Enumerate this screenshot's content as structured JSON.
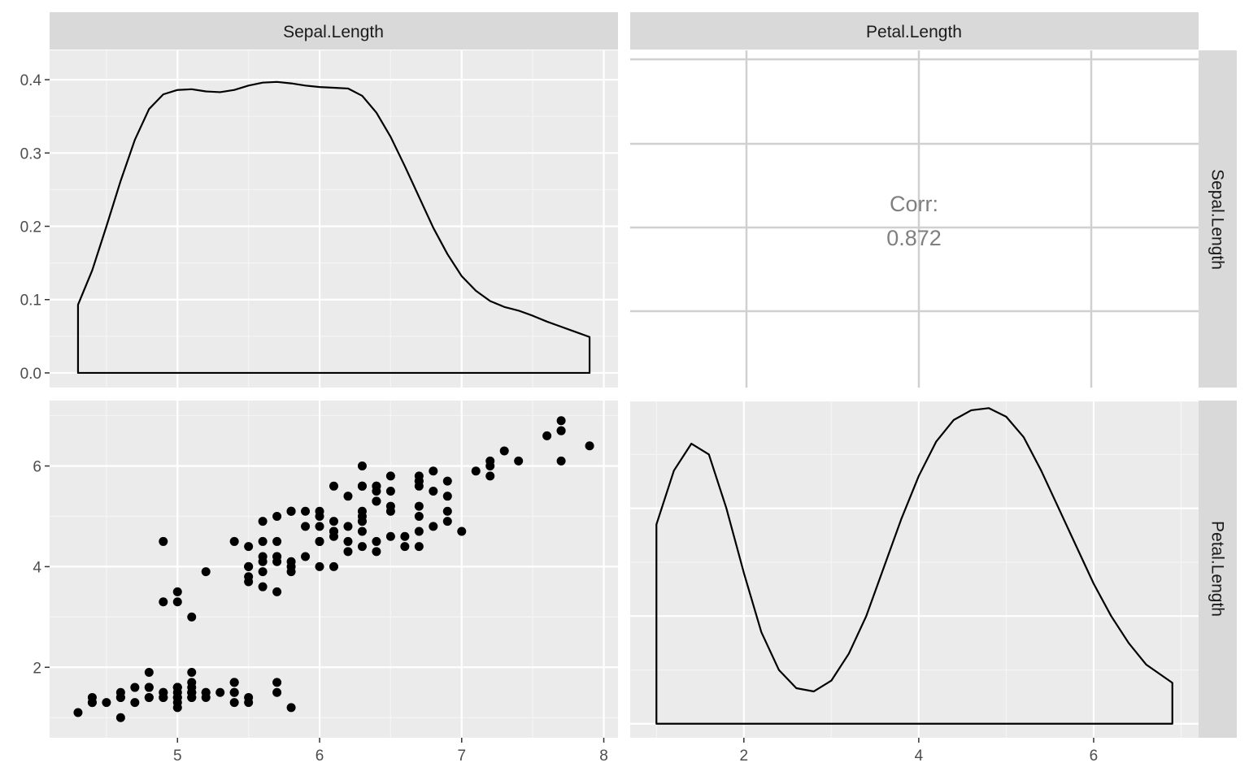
{
  "chart_data": {
    "type": "scatter",
    "title": "",
    "variables": [
      "Sepal.Length",
      "Petal.Length"
    ],
    "column_strips": [
      "Sepal.Length",
      "Petal.Length"
    ],
    "row_strips": [
      "Sepal.Length",
      "Petal.Length"
    ],
    "theme": "ggplot2 grey, grid on, no legend",
    "panels": {
      "sepal_density": {
        "type": "area",
        "x_ticks": [
          "5",
          "6",
          "7",
          "8"
        ],
        "y_ticks": [
          "0.0",
          "0.1",
          "0.2",
          "0.3",
          "0.4"
        ],
        "xlim": [
          4.1,
          8.1
        ],
        "ylim": [
          -0.02,
          0.44
        ],
        "x": [
          4.3,
          4.4,
          4.5,
          4.6,
          4.7,
          4.8,
          4.9,
          5.0,
          5.1,
          5.2,
          5.3,
          5.4,
          5.5,
          5.6,
          5.7,
          5.8,
          5.9,
          6.0,
          6.1,
          6.2,
          6.3,
          6.4,
          6.5,
          6.6,
          6.7,
          6.8,
          6.9,
          7.0,
          7.1,
          7.2,
          7.3,
          7.4,
          7.5,
          7.6,
          7.7,
          7.8,
          7.9
        ],
        "y": [
          0.093,
          0.14,
          0.2,
          0.262,
          0.318,
          0.36,
          0.38,
          0.386,
          0.387,
          0.384,
          0.383,
          0.386,
          0.392,
          0.396,
          0.397,
          0.395,
          0.392,
          0.39,
          0.389,
          0.388,
          0.378,
          0.355,
          0.322,
          0.282,
          0.24,
          0.198,
          0.162,
          0.132,
          0.112,
          0.098,
          0.09,
          0.085,
          0.078,
          0.07,
          0.063,
          0.056,
          0.049
        ]
      },
      "correlation": {
        "label": "Corr:",
        "value": "0.872"
      },
      "scatter": {
        "x_ticks": [
          "5",
          "6",
          "7",
          "8"
        ],
        "y_ticks": [
          "2",
          "4",
          "6"
        ],
        "xlim": [
          4.1,
          8.1
        ],
        "ylim": [
          0.6,
          7.3
        ],
        "points": [
          [
            5.1,
            1.4
          ],
          [
            4.9,
            1.4
          ],
          [
            4.7,
            1.3
          ],
          [
            4.6,
            1.5
          ],
          [
            5.0,
            1.4
          ],
          [
            5.4,
            1.7
          ],
          [
            4.6,
            1.4
          ],
          [
            5.0,
            1.5
          ],
          [
            4.4,
            1.4
          ],
          [
            4.9,
            1.5
          ],
          [
            5.4,
            1.5
          ],
          [
            4.8,
            1.6
          ],
          [
            4.8,
            1.4
          ],
          [
            4.3,
            1.1
          ],
          [
            5.8,
            1.2
          ],
          [
            5.7,
            1.5
          ],
          [
            5.4,
            1.3
          ],
          [
            5.1,
            1.4
          ],
          [
            5.7,
            1.7
          ],
          [
            5.1,
            1.5
          ],
          [
            5.4,
            1.7
          ],
          [
            5.1,
            1.5
          ],
          [
            4.6,
            1.0
          ],
          [
            5.1,
            1.7
          ],
          [
            4.8,
            1.9
          ],
          [
            5.0,
            1.6
          ],
          [
            5.0,
            1.6
          ],
          [
            5.2,
            1.5
          ],
          [
            5.2,
            1.4
          ],
          [
            4.7,
            1.6
          ],
          [
            4.8,
            1.6
          ],
          [
            5.4,
            1.5
          ],
          [
            5.2,
            1.5
          ],
          [
            5.5,
            1.4
          ],
          [
            4.9,
            1.5
          ],
          [
            5.0,
            1.2
          ],
          [
            5.5,
            1.3
          ],
          [
            4.9,
            1.4
          ],
          [
            4.4,
            1.3
          ],
          [
            5.1,
            1.5
          ],
          [
            5.0,
            1.3
          ],
          [
            4.5,
            1.3
          ],
          [
            4.4,
            1.3
          ],
          [
            5.0,
            1.6
          ],
          [
            5.1,
            1.9
          ],
          [
            4.8,
            1.4
          ],
          [
            5.1,
            1.6
          ],
          [
            4.6,
            1.4
          ],
          [
            5.3,
            1.5
          ],
          [
            5.0,
            1.4
          ],
          [
            7.0,
            4.7
          ],
          [
            6.4,
            4.5
          ],
          [
            6.9,
            4.9
          ],
          [
            5.5,
            4.0
          ],
          [
            6.5,
            4.6
          ],
          [
            5.7,
            4.5
          ],
          [
            6.3,
            4.7
          ],
          [
            4.9,
            3.3
          ],
          [
            6.6,
            4.6
          ],
          [
            5.2,
            3.9
          ],
          [
            5.0,
            3.5
          ],
          [
            5.9,
            4.2
          ],
          [
            6.0,
            4.0
          ],
          [
            6.1,
            4.7
          ],
          [
            5.6,
            3.6
          ],
          [
            6.7,
            4.4
          ],
          [
            5.6,
            4.5
          ],
          [
            5.8,
            4.1
          ],
          [
            6.2,
            4.5
          ],
          [
            5.6,
            3.9
          ],
          [
            5.9,
            4.8
          ],
          [
            6.1,
            4.0
          ],
          [
            6.3,
            4.9
          ],
          [
            6.1,
            4.7
          ],
          [
            6.4,
            4.3
          ],
          [
            6.6,
            4.4
          ],
          [
            6.8,
            4.8
          ],
          [
            6.7,
            5.0
          ],
          [
            6.0,
            4.5
          ],
          [
            5.7,
            3.5
          ],
          [
            5.5,
            3.8
          ],
          [
            5.5,
            3.7
          ],
          [
            5.8,
            3.9
          ],
          [
            6.0,
            5.1
          ],
          [
            5.4,
            4.5
          ],
          [
            6.0,
            4.5
          ],
          [
            6.7,
            4.7
          ],
          [
            6.3,
            4.4
          ],
          [
            5.6,
            4.1
          ],
          [
            5.5,
            4.0
          ],
          [
            5.5,
            4.4
          ],
          [
            6.1,
            4.6
          ],
          [
            5.8,
            4.0
          ],
          [
            5.0,
            3.3
          ],
          [
            5.6,
            4.2
          ],
          [
            5.7,
            4.2
          ],
          [
            5.7,
            4.2
          ],
          [
            6.2,
            4.3
          ],
          [
            5.1,
            3.0
          ],
          [
            5.7,
            4.1
          ],
          [
            6.3,
            6.0
          ],
          [
            5.8,
            5.1
          ],
          [
            7.1,
            5.9
          ],
          [
            6.3,
            5.6
          ],
          [
            6.5,
            5.8
          ],
          [
            7.6,
            6.6
          ],
          [
            4.9,
            4.5
          ],
          [
            7.3,
            6.3
          ],
          [
            6.7,
            5.8
          ],
          [
            7.2,
            6.1
          ],
          [
            6.5,
            5.1
          ],
          [
            6.4,
            5.3
          ],
          [
            6.8,
            5.5
          ],
          [
            5.7,
            5.0
          ],
          [
            5.8,
            5.1
          ],
          [
            6.4,
            5.3
          ],
          [
            6.5,
            5.5
          ],
          [
            7.7,
            6.7
          ],
          [
            7.7,
            6.9
          ],
          [
            6.0,
            5.0
          ],
          [
            6.9,
            5.7
          ],
          [
            5.6,
            4.9
          ],
          [
            7.7,
            6.7
          ],
          [
            6.3,
            4.9
          ],
          [
            6.7,
            5.7
          ],
          [
            7.2,
            6.0
          ],
          [
            6.2,
            4.8
          ],
          [
            6.1,
            4.9
          ],
          [
            6.4,
            5.6
          ],
          [
            7.2,
            5.8
          ],
          [
            7.4,
            6.1
          ],
          [
            7.9,
            6.4
          ],
          [
            6.4,
            5.6
          ],
          [
            6.3,
            5.1
          ],
          [
            6.1,
            5.6
          ],
          [
            7.7,
            6.1
          ],
          [
            6.3,
            5.6
          ],
          [
            6.4,
            5.5
          ],
          [
            6.0,
            4.8
          ],
          [
            6.9,
            5.4
          ],
          [
            6.7,
            5.6
          ],
          [
            6.9,
            5.1
          ],
          [
            5.8,
            5.1
          ],
          [
            6.8,
            5.9
          ],
          [
            6.7,
            5.7
          ],
          [
            6.7,
            5.2
          ],
          [
            6.3,
            5.0
          ],
          [
            6.5,
            5.2
          ],
          [
            6.2,
            5.4
          ],
          [
            5.9,
            5.1
          ]
        ]
      },
      "petal_density": {
        "type": "area",
        "x_ticks": [
          "2",
          "4",
          "6"
        ],
        "xlim": [
          0.7,
          7.2
        ],
        "ylim": [
          -0.013,
          0.3
        ],
        "x": [
          1.0,
          1.2,
          1.4,
          1.6,
          1.8,
          2.0,
          2.2,
          2.4,
          2.6,
          2.8,
          3.0,
          3.2,
          3.4,
          3.6,
          3.8,
          4.0,
          4.2,
          4.4,
          4.6,
          4.8,
          5.0,
          5.2,
          5.4,
          5.6,
          5.8,
          6.0,
          6.2,
          6.4,
          6.6,
          6.9
        ],
        "y": [
          0.185,
          0.235,
          0.26,
          0.25,
          0.2,
          0.14,
          0.085,
          0.05,
          0.033,
          0.03,
          0.04,
          0.065,
          0.1,
          0.145,
          0.19,
          0.23,
          0.262,
          0.282,
          0.291,
          0.293,
          0.285,
          0.266,
          0.235,
          0.2,
          0.165,
          0.13,
          0.1,
          0.075,
          0.055,
          0.038
        ]
      }
    }
  }
}
